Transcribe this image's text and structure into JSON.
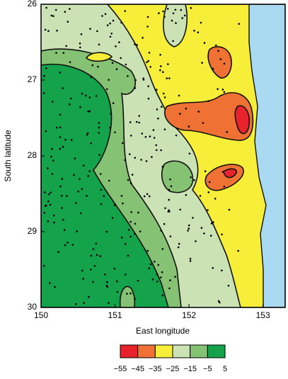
{
  "chart_data": {
    "type": "contour",
    "xlabel": "East longitude",
    "ylabel": "South latitude",
    "xlim": [
      150,
      153.3
    ],
    "xticks": [
      150,
      151,
      152,
      153
    ],
    "ylim": [
      26,
      30
    ],
    "yticks": [
      26,
      27,
      28,
      29,
      30
    ],
    "colorbar": {
      "ticks": [
        {
          "value": -55,
          "label": "−55"
        },
        {
          "value": -45,
          "label": "−45"
        },
        {
          "value": -35,
          "label": "−35"
        },
        {
          "value": -25,
          "label": "−25"
        },
        {
          "value": -15,
          "label": "−15"
        },
        {
          "value": -5,
          "label": "−5"
        },
        5
      ],
      "colors": [
        "#e8232b",
        "#ef7134",
        "#f7ee3a",
        "#cbe2b4",
        "#86c274",
        "#14a24a"
      ]
    }
  }
}
